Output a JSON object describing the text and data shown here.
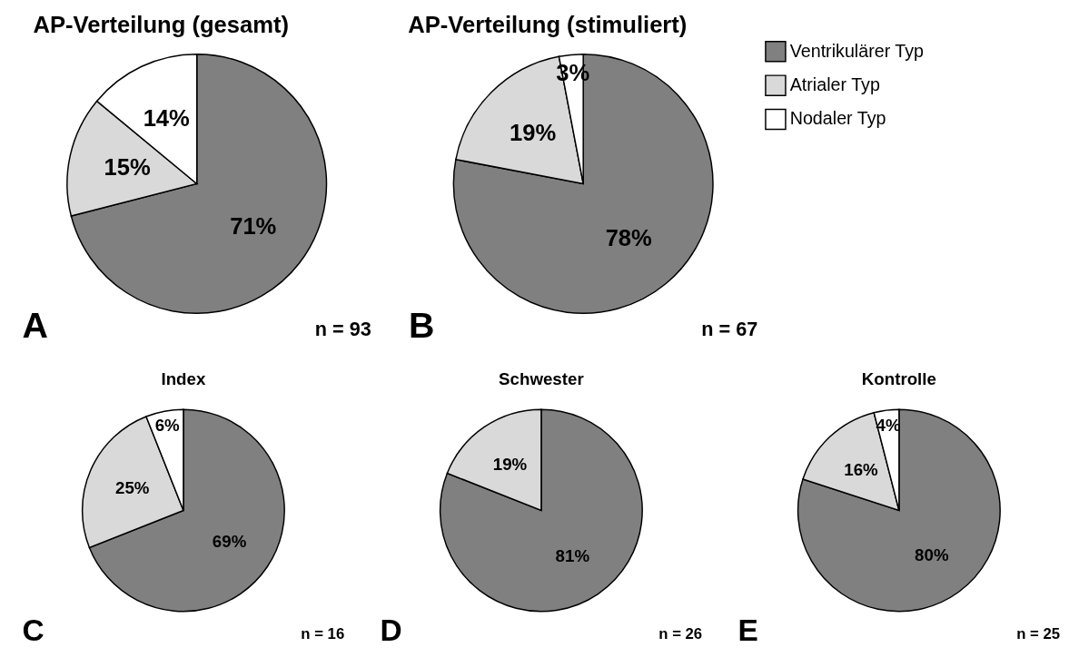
{
  "chart_data": [
    {
      "type": "pie",
      "title": "AP-Verteilung (gesamt)",
      "categories": [
        null,
        null,
        null
      ],
      "values": [
        71,
        15,
        14
      ],
      "colors": [
        "#808080",
        "#d9d9d9",
        "#ffffff"
      ],
      "value_labels": [
        "71%",
        "15%",
        "14%"
      ],
      "annotations": [
        "A",
        "n = 93"
      ]
    },
    {
      "type": "pie",
      "title": "AP-Verteilung (stimuliert)",
      "categories": [
        "Ventrikulärer Typ",
        "Atrialer Typ",
        "Nodaler Typ"
      ],
      "values": [
        78,
        19,
        3
      ],
      "colors": [
        "#808080",
        "#d9d9d9",
        "#ffffff"
      ],
      "value_labels": [
        "78%",
        "19%",
        "3%"
      ],
      "annotations": [
        "B",
        "n = 67"
      ],
      "legend": "right"
    },
    {
      "type": "pie",
      "title": "Index",
      "categories": [
        null,
        null,
        null
      ],
      "values": [
        69,
        25,
        6
      ],
      "colors": [
        "#808080",
        "#d9d9d9",
        "#ffffff"
      ],
      "value_labels": [
        "69%",
        "25%",
        "6%"
      ],
      "annotations": [
        "C",
        "n = 16"
      ]
    },
    {
      "type": "pie",
      "title": "Schwester",
      "categories": [
        null,
        null
      ],
      "values": [
        81,
        19
      ],
      "colors": [
        "#808080",
        "#d9d9d9"
      ],
      "value_labels": [
        "81%",
        "19%"
      ],
      "annotations": [
        "D",
        "n = 26"
      ]
    },
    {
      "type": "pie",
      "title": "Kontrolle",
      "categories": [
        null,
        null,
        null
      ],
      "values": [
        80,
        16,
        4
      ],
      "colors": [
        "#808080",
        "#d9d9d9",
        "#ffffff"
      ],
      "value_labels": [
        "80%",
        "16%",
        "4%"
      ],
      "annotations": [
        "E",
        "n = 25"
      ]
    }
  ]
}
